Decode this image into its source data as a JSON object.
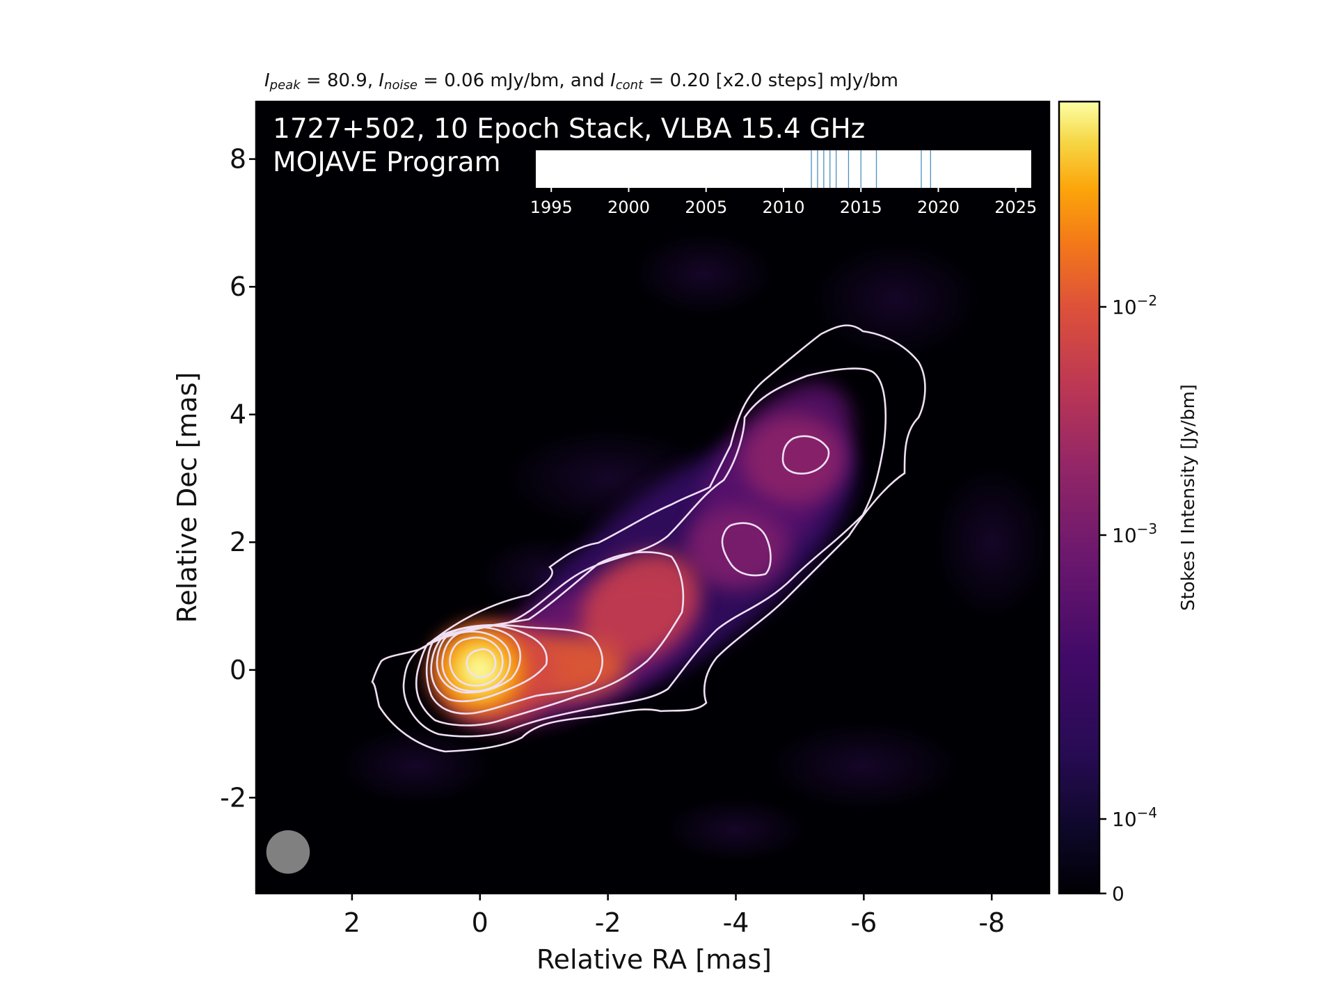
{
  "header": {
    "peak_var": "I",
    "peak_sub": "peak",
    "peak_text": " = 80.9, ",
    "noise_var": "I",
    "noise_sub": "noise",
    "noise_text": " = 0.06 mJy/bm, and ",
    "cont_var": "I",
    "cont_sub": "cont",
    "cont_text": " = 0.20 [x2.0 steps] mJy/bm"
  },
  "image_title": {
    "line1": "1727+502, 10 Epoch Stack, VLBA 15.4 GHz",
    "line2": "MOJAVE Program"
  },
  "chart_data": {
    "type": "heatmap",
    "xlabel": "Relative RA [mas]",
    "ylabel": "Relative Dec [mas]",
    "xlim": [
      3.5,
      -8.9
    ],
    "ylim": [
      -3.5,
      8.9
    ],
    "x_ticks": [
      2,
      0,
      -2,
      -4,
      -6,
      -8
    ],
    "x_tick_labels": [
      "2",
      "0",
      "-2",
      "-4",
      "-6",
      "-8"
    ],
    "y_ticks": [
      8,
      6,
      4,
      2,
      0,
      -2
    ],
    "y_tick_labels": [
      "8",
      "6",
      "4",
      "2",
      "0",
      "-2"
    ],
    "colormap": "inferno",
    "colorbar": {
      "label": "Stokes I Intensity [Jy/bm]",
      "ticks": [
        {
          "value": 0.01,
          "base": "10",
          "exp": "−2"
        },
        {
          "value": 0.001,
          "base": "10",
          "exp": "−3"
        },
        {
          "value": 0.0001,
          "base": "10",
          "exp": "−4"
        },
        {
          "value": 0,
          "base": "0",
          "exp": ""
        }
      ]
    },
    "components": [
      {
        "ra": 0.0,
        "dec": 0.0,
        "peak_mjy": 80.9
      },
      {
        "ra": -1.2,
        "dec": 0.05,
        "peak_mjy": 8.0
      },
      {
        "ra": -2.5,
        "dec": 1.1,
        "peak_mjy": 7.0
      },
      {
        "ra": -4.1,
        "dec": 1.9,
        "peak_mjy": 1.4
      },
      {
        "ra": -4.9,
        "dec": 3.3,
        "peak_mjy": 1.5
      },
      {
        "ra": -5.6,
        "dec": 4.2,
        "peak_mjy": 0.7
      }
    ],
    "contour_levels_mjy": [
      0.2,
      0.4,
      0.8,
      1.6,
      3.2,
      6.4,
      12.8,
      25.6,
      51.2
    ],
    "beam": {
      "ra": 3.0,
      "dec": -2.85,
      "major_mas": 0.68,
      "minor_mas": 0.68
    },
    "epochs_timeline": {
      "xlim": [
        1994,
        2026
      ],
      "ticks": [
        1995,
        2000,
        2005,
        2010,
        2015,
        2020,
        2025
      ],
      "epochs": [
        2011.8,
        2012.2,
        2012.6,
        2013.0,
        2013.4,
        2014.2,
        2015.0,
        2016.0,
        2018.9,
        2019.5
      ]
    }
  },
  "colors": {
    "contour": "#f0e0f5",
    "beam": "#808080",
    "epoch_line": "#4a90c0"
  }
}
